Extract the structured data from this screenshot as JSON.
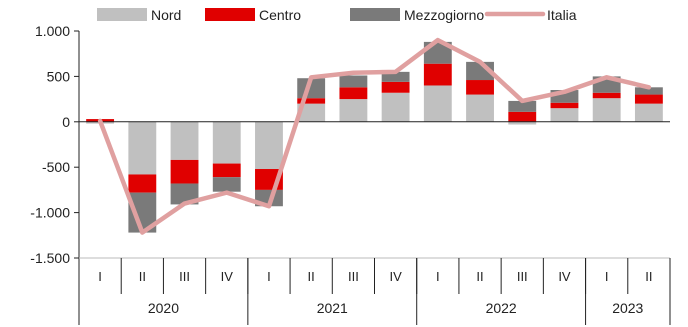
{
  "chart_data": {
    "type": "bar",
    "subtype": "stacked-bar-with-line",
    "title": "",
    "xlabel": "",
    "ylabel": "",
    "ylim": [
      -1500,
      1000
    ],
    "yticks": [
      1000,
      500,
      0,
      -500,
      -1000,
      -1500
    ],
    "ytick_labels": [
      "1.000",
      "500",
      "0",
      "-500",
      "-1.000",
      "-1.500"
    ],
    "grid": false,
    "legend_position": "top",
    "categories": [
      "I",
      "II",
      "III",
      "IV",
      "I",
      "II",
      "III",
      "IV",
      "I",
      "II",
      "III",
      "IV",
      "I",
      "II"
    ],
    "years": [
      {
        "label": "2020",
        "quarters": 4
      },
      {
        "label": "2021",
        "quarters": 4
      },
      {
        "label": "2022",
        "quarters": 4
      },
      {
        "label": "2023",
        "quarters": 2
      }
    ],
    "series": [
      {
        "name": "Nord",
        "kind": "bar",
        "color": "#c0c0c0",
        "values": [
          -20,
          -580,
          -420,
          -460,
          -520,
          200,
          250,
          320,
          400,
          300,
          -30,
          150,
          260,
          200
        ]
      },
      {
        "name": "Centro",
        "kind": "bar",
        "color": "#e00000",
        "values": [
          30,
          -200,
          -260,
          -150,
          -230,
          60,
          130,
          120,
          240,
          160,
          110,
          60,
          60,
          100
        ]
      },
      {
        "name": "Mezzogiorno",
        "kind": "bar",
        "color": "#7a7a7a",
        "values": [
          0,
          -440,
          -230,
          -160,
          -180,
          220,
          130,
          110,
          240,
          200,
          120,
          140,
          180,
          80
        ]
      },
      {
        "name": "Italia",
        "kind": "line",
        "color": "#e0a0a0",
        "values": [
          10,
          -1220,
          -900,
          -780,
          -930,
          490,
          540,
          550,
          900,
          660,
          230,
          330,
          490,
          380
        ]
      }
    ]
  }
}
